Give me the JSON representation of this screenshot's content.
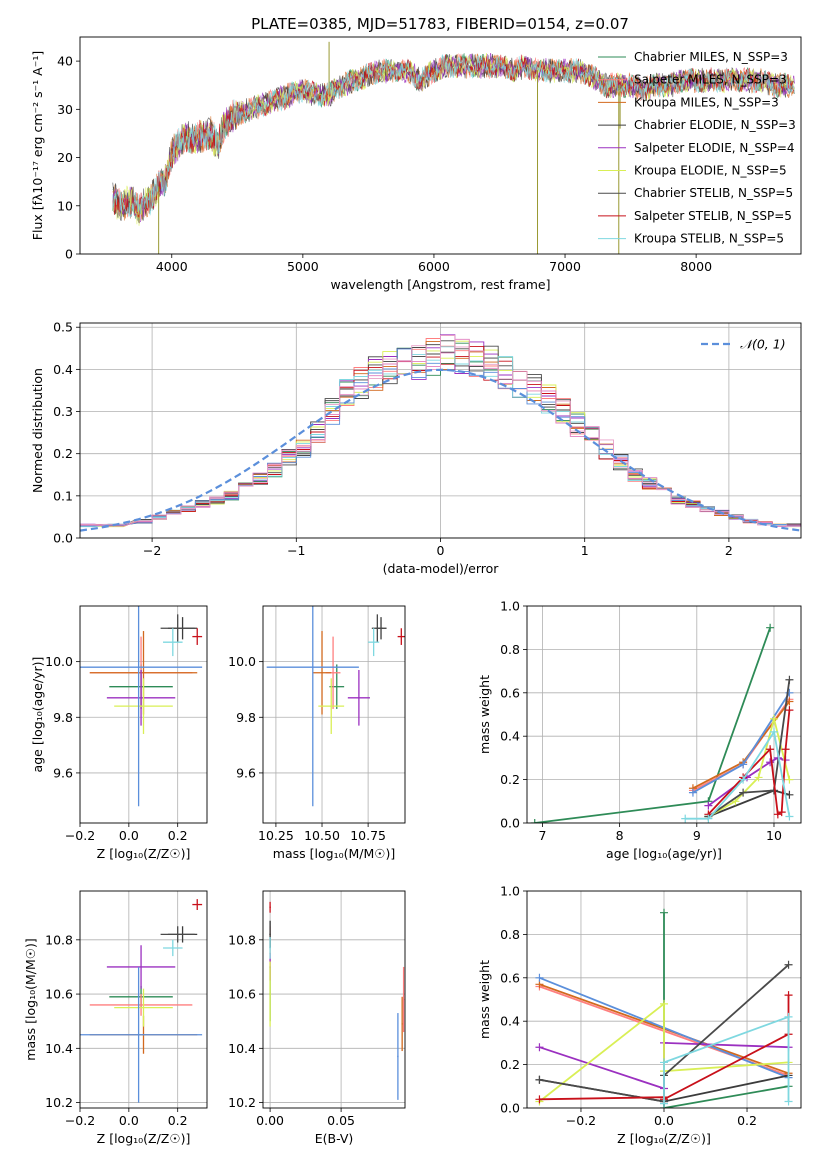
{
  "figure_title": "PLATE=0385, MJD=51783, FIBERID=0154, z=0.07",
  "colors": [
    "#2e8b57",
    "#ff7f7f",
    "#d2691e",
    "#3c3c3c",
    "#9b30c0",
    "#d9ef55",
    "#4a4a4a",
    "#c8101a",
    "#7fd8e0"
  ],
  "chart_data": [
    {
      "type": "line",
      "title": "PLATE=0385, MJD=51783, FIBERID=0154, z=0.07",
      "xlabel": "wavelength [Angstrom, rest frame]",
      "ylabel": "Flux [fλ10⁻¹⁷ erg cm⁻² s⁻¹ A⁻¹]",
      "xlim": [
        3300,
        8800
      ],
      "ylim": [
        0,
        45
      ],
      "xticks": [
        4000,
        5000,
        6000,
        7000,
        8000
      ],
      "yticks": [
        0,
        10,
        20,
        30,
        40
      ],
      "grid": false,
      "legend_position": "top-right",
      "series": [
        {
          "name": "Chabrier MILES, N_SSP=3"
        },
        {
          "name": "Salpeter MILES, N_SSP=3"
        },
        {
          "name": "Kroupa MILES, N_SSP=3"
        },
        {
          "name": "Chabrier ELODIE, N_SSP=3"
        },
        {
          "name": "Salpeter ELODIE, N_SSP=4"
        },
        {
          "name": "Kroupa ELODIE, N_SSP=5"
        },
        {
          "name": "Chabrier STELIB, N_SSP=5"
        },
        {
          "name": "Salpeter STELIB, N_SSP=5"
        },
        {
          "name": "Kroupa STELIB, N_SSP=5"
        }
      ],
      "continuum": {
        "x": [
          3550,
          3600,
          3700,
          3750,
          3850,
          3900,
          3950,
          4000,
          4100,
          4200,
          4300,
          4350,
          4400,
          4500,
          4600,
          4700,
          4800,
          4900,
          5000,
          5100,
          5200,
          5300,
          5400,
          5500,
          5600,
          5700,
          5800,
          5900,
          6000,
          6100,
          6200,
          6300,
          6400,
          6500,
          6600,
          6700,
          6800,
          6900,
          7000,
          7100,
          7200,
          7300,
          7400,
          7500,
          7600,
          7700,
          7800,
          7900,
          8000,
          8100,
          8200,
          8300,
          8400,
          8500,
          8600,
          8750
        ],
        "y": [
          12,
          10,
          11,
          9,
          12,
          14,
          15,
          21,
          24,
          24,
          25,
          22,
          27,
          29,
          30,
          31,
          32,
          33,
          34,
          33,
          33,
          35,
          36,
          37,
          38,
          38,
          38,
          36,
          38,
          39,
          39,
          39,
          39,
          39,
          38,
          39,
          38,
          38,
          38,
          38,
          37,
          35,
          35,
          35,
          34,
          35,
          35,
          36,
          36,
          36,
          36,
          36,
          36,
          36,
          35,
          35
        ]
      },
      "spikes": [
        {
          "x": 5200,
          "y": 44
        },
        {
          "x": 3900,
          "y": 0
        },
        {
          "x": 6790,
          "y": 0
        },
        {
          "x": 7410,
          "y": 0
        },
        {
          "x": 7420,
          "y": 26
        }
      ]
    },
    {
      "type": "bar",
      "title": "",
      "xlabel": "(data-model)/error",
      "ylabel": "Normed distribution",
      "xlim": [
        -2.5,
        2.5
      ],
      "ylim": [
        0,
        0.51
      ],
      "xticks": [
        -2,
        -1,
        0,
        1,
        2
      ],
      "yticks": [
        0.0,
        0.1,
        0.2,
        0.3,
        0.4,
        0.5
      ],
      "grid": true,
      "legend_position": "top-right",
      "bin_width": 0.1,
      "reference_curve": {
        "name": "𝒩(0, 1)",
        "style": "dashed",
        "color": "#5b8fdb"
      },
      "histogram_envelope": {
        "x": [
          -2.5,
          -2.3,
          -2.1,
          -2.0,
          -1.9,
          -1.8,
          -1.7,
          -1.6,
          -1.5,
          -1.4,
          -1.3,
          -1.2,
          -1.1,
          -1.0,
          -0.9,
          -0.8,
          -0.7,
          -0.6,
          -0.5,
          -0.4,
          -0.3,
          -0.2,
          -0.1,
          0.0,
          0.1,
          0.2,
          0.3,
          0.4,
          0.5,
          0.6,
          0.7,
          0.8,
          0.9,
          1.0,
          1.1,
          1.2,
          1.3,
          1.4,
          1.5,
          1.6,
          1.7,
          1.8,
          1.9,
          2.0,
          2.1,
          2.2,
          2.3,
          2.4
        ],
        "y": [
          0.03,
          0.03,
          0.04,
          0.05,
          0.06,
          0.07,
          0.08,
          0.09,
          0.1,
          0.12,
          0.14,
          0.16,
          0.19,
          0.21,
          0.25,
          0.3,
          0.34,
          0.37,
          0.39,
          0.4,
          0.41,
          0.42,
          0.43,
          0.44,
          0.43,
          0.42,
          0.41,
          0.39,
          0.37,
          0.35,
          0.33,
          0.3,
          0.27,
          0.24,
          0.21,
          0.18,
          0.15,
          0.13,
          0.11,
          0.09,
          0.08,
          0.07,
          0.06,
          0.05,
          0.04,
          0.035,
          0.03,
          0.03
        ]
      }
    },
    {
      "type": "scatter",
      "title": "",
      "xlabel": "Z [log₁₀(Z/Z☉)]",
      "ylabel": "age  [log₁₀(age/yr)]",
      "xlim": [
        -0.2,
        0.32
      ],
      "ylim": [
        9.42,
        10.2
      ],
      "xticks": [
        -0.2,
        0.0,
        0.2
      ],
      "yticks": [
        9.6,
        9.8,
        10.0
      ],
      "grid": true,
      "points": [
        {
          "series": 0,
          "x": 0.05,
          "y": 9.91,
          "xerr": 0.13,
          "yerr": 0.08
        },
        {
          "series": 1,
          "x": 0.05,
          "y": 9.96,
          "xerr": 0.21,
          "yerr": 0.13
        },
        {
          "series": 2,
          "x": 0.06,
          "y": 9.96,
          "xerr": 0.22,
          "yerr": 0.15
        },
        {
          "series": 3,
          "x": 0.22,
          "y": 10.12,
          "xerr": 0.06,
          "yerr": 0.04
        },
        {
          "series": 4,
          "x": 0.05,
          "y": 9.87,
          "xerr": 0.14,
          "yerr": 0.1
        },
        {
          "series": 5,
          "x": 0.06,
          "y": 9.84,
          "xerr": 0.12,
          "yerr": 0.1
        },
        {
          "series": 6,
          "x": 0.2,
          "y": 10.12,
          "xerr": 0.07,
          "yerr": 0.05
        },
        {
          "series": 7,
          "x": 0.28,
          "y": 10.09,
          "xerr": 0.02,
          "yerr": 0.03
        },
        {
          "series": 8,
          "x": 0.18,
          "y": 10.07,
          "xerr": 0.04,
          "yerr": 0.05
        },
        {
          "series": 9,
          "x": 0.04,
          "y": 9.98,
          "xerr": 0.26,
          "yerr": 0.5
        }
      ]
    },
    {
      "type": "scatter",
      "title": "",
      "xlabel": "mass [log₁₀(M/M☉)]",
      "ylabel": "",
      "xlim": [
        10.18,
        10.95
      ],
      "ylim": [
        9.42,
        10.2
      ],
      "xticks": [
        10.25,
        10.5,
        10.75
      ],
      "yticks": [
        9.6,
        9.8,
        10.0
      ],
      "grid": true,
      "points": [
        {
          "series": 0,
          "x": 10.58,
          "y": 9.91,
          "xerr": 0.04,
          "yerr": 0.08
        },
        {
          "series": 1,
          "x": 10.56,
          "y": 9.96,
          "xerr": 0.04,
          "yerr": 0.13
        },
        {
          "series": 2,
          "x": 10.5,
          "y": 9.96,
          "xerr": 0.05,
          "yerr": 0.15
        },
        {
          "series": 3,
          "x": 10.82,
          "y": 10.12,
          "xerr": 0.03,
          "yerr": 0.04
        },
        {
          "series": 4,
          "x": 10.7,
          "y": 9.87,
          "xerr": 0.06,
          "yerr": 0.1
        },
        {
          "series": 5,
          "x": 10.55,
          "y": 9.84,
          "xerr": 0.07,
          "yerr": 0.1
        },
        {
          "series": 6,
          "x": 10.8,
          "y": 10.12,
          "xerr": 0.03,
          "yerr": 0.05
        },
        {
          "series": 7,
          "x": 10.93,
          "y": 10.09,
          "xerr": 0.02,
          "yerr": 0.03
        },
        {
          "series": 8,
          "x": 10.78,
          "y": 10.07,
          "xerr": 0.03,
          "yerr": 0.05
        },
        {
          "series": 9,
          "x": 10.45,
          "y": 9.98,
          "xerr": 0.25,
          "yerr": 0.5
        }
      ]
    },
    {
      "type": "line",
      "title": "",
      "xlabel": "age  [log₁₀(age/yr)]",
      "ylabel": "mass weight",
      "xlim": [
        6.8,
        10.35
      ],
      "ylim": [
        0,
        1
      ],
      "xticks": [
        7,
        8,
        9,
        10
      ],
      "yticks": [
        0.0,
        0.2,
        0.4,
        0.6,
        0.8,
        1.0
      ],
      "grid": true,
      "series": [
        {
          "color_index": 0,
          "x": [
            6.9,
            9.15,
            9.95
          ],
          "y": [
            0.0,
            0.1,
            0.9
          ]
        },
        {
          "color_index": 1,
          "x": [
            8.95,
            9.6,
            10.2
          ],
          "y": [
            0.15,
            0.27,
            0.57
          ]
        },
        {
          "color_index": 2,
          "x": [
            8.95,
            9.6,
            10.2
          ],
          "y": [
            0.16,
            0.28,
            0.56
          ]
        },
        {
          "color_index": 9,
          "x": [
            8.95,
            9.6,
            10.2
          ],
          "y": [
            0.14,
            0.27,
            0.6
          ]
        },
        {
          "color_index": 3,
          "x": [
            9.15,
            10.0,
            10.2
          ],
          "y": [
            0.03,
            0.15,
            0.13
          ]
        },
        {
          "color_index": 4,
          "x": [
            9.15,
            9.65,
            9.95,
            10.05,
            10.15
          ],
          "y": [
            0.08,
            0.21,
            0.28,
            0.3,
            0.29
          ]
        },
        {
          "color_index": 5,
          "x": [
            9.15,
            9.5,
            9.8,
            10.0,
            10.2
          ],
          "y": [
            0.03,
            0.1,
            0.21,
            0.48,
            0.2
          ]
        },
        {
          "color_index": 6,
          "x": [
            9.15,
            9.6,
            10.0,
            10.2
          ],
          "y": [
            0.03,
            0.14,
            0.15,
            0.66
          ]
        },
        {
          "color_index": 7,
          "x": [
            9.15,
            9.6,
            9.95,
            10.05,
            10.1,
            10.15,
            10.2
          ],
          "y": [
            0.04,
            0.21,
            0.34,
            0.04,
            0.05,
            0.34,
            0.52
          ]
        },
        {
          "color_index": 8,
          "x": [
            8.85,
            9.15,
            9.6,
            10.0,
            10.2
          ],
          "y": [
            0.02,
            0.02,
            0.2,
            0.42,
            0.03
          ]
        }
      ]
    },
    {
      "type": "scatter",
      "title": "",
      "xlabel": "Z [log₁₀(Z/Z☉)]",
      "ylabel": "mass [log₁₀(M/M☉)]",
      "xlim": [
        -0.2,
        0.32
      ],
      "ylim": [
        10.18,
        10.98
      ],
      "xticks": [
        -0.2,
        0.0,
        0.2
      ],
      "yticks": [
        10.2,
        10.4,
        10.6,
        10.8
      ],
      "grid": true,
      "points": [
        {
          "series": 0,
          "x": 0.05,
          "y": 10.59,
          "xerr": 0.13,
          "yerr": 0.04
        },
        {
          "series": 1,
          "x": 0.05,
          "y": 10.56,
          "xerr": 0.21,
          "yerr": 0.04
        },
        {
          "series": 2,
          "x": 0.06,
          "y": 10.45,
          "xerr": 0.22,
          "yerr": 0.07
        },
        {
          "series": 3,
          "x": 0.22,
          "y": 10.82,
          "xerr": 0.06,
          "yerr": 0.03
        },
        {
          "series": 4,
          "x": 0.05,
          "y": 10.7,
          "xerr": 0.14,
          "yerr": 0.08
        },
        {
          "series": 5,
          "x": 0.06,
          "y": 10.55,
          "xerr": 0.12,
          "yerr": 0.07
        },
        {
          "series": 6,
          "x": 0.2,
          "y": 10.82,
          "xerr": 0.07,
          "yerr": 0.03
        },
        {
          "series": 7,
          "x": 0.28,
          "y": 10.93,
          "xerr": 0.02,
          "yerr": 0.02
        },
        {
          "series": 8,
          "x": 0.18,
          "y": 10.77,
          "xerr": 0.04,
          "yerr": 0.03
        },
        {
          "series": 9,
          "x": 0.04,
          "y": 10.45,
          "xerr": 0.26,
          "yerr": 0.25
        }
      ]
    },
    {
      "type": "scatter",
      "title": "",
      "xlabel": "E(B-V)",
      "ylabel": "",
      "xlim": [
        -0.005,
        0.095
      ],
      "ylim": [
        10.18,
        10.98
      ],
      "xticks": [
        0.0,
        0.05
      ],
      "yticks": [
        10.2,
        10.4,
        10.6,
        10.8
      ],
      "grid": true,
      "points": [
        {
          "series": 0,
          "x": 0.0,
          "y": 10.6,
          "xerr": 0.0005,
          "yerr": 0.1
        },
        {
          "series": 1,
          "x": 0.0,
          "y": 10.75,
          "xerr": 0.0005,
          "yerr": 0.1
        },
        {
          "series": 2,
          "x": 0.093,
          "y": 10.49,
          "xerr": 0.0005,
          "yerr": 0.1
        },
        {
          "series": 3,
          "x": 0.0,
          "y": 10.82,
          "xerr": 0.0005,
          "yerr": 0.05
        },
        {
          "series": 4,
          "x": 0.0,
          "y": 10.7,
          "xerr": 0.0005,
          "yerr": 0.05
        },
        {
          "series": 5,
          "x": 0.0,
          "y": 10.6,
          "xerr": 0.0005,
          "yerr": 0.12
        },
        {
          "series": 6,
          "x": 0.0,
          "y": 10.82,
          "xerr": 0.0005,
          "yerr": 0.05
        },
        {
          "series": 7,
          "x": 0.0,
          "y": 10.92,
          "xerr": 0.0005,
          "yerr": 0.02
        },
        {
          "series": 8,
          "x": 0.0,
          "y": 10.77,
          "xerr": 0.0005,
          "yerr": 0.04
        },
        {
          "series": 9,
          "x": 0.09,
          "y": 10.37,
          "xerr": 0.0005,
          "yerr": 0.16
        },
        {
          "series": 1,
          "x": 0.094,
          "y": 10.58,
          "xerr": 0.0005,
          "yerr": 0.12
        }
      ]
    },
    {
      "type": "line",
      "title": "",
      "xlabel": "Z [log₁₀(Z/Z☉)]",
      "ylabel": "mass weight",
      "xlim": [
        -0.33,
        0.33
      ],
      "ylim": [
        0,
        1
      ],
      "xticks": [
        -0.2,
        0.0,
        0.2
      ],
      "yticks": [
        0.0,
        0.2,
        0.4,
        0.6,
        0.8,
        1.0
      ],
      "grid": true,
      "series": [
        {
          "color_index": 0,
          "x": [
            0.0,
            0.0,
            0.0,
            0.3
          ],
          "y": [
            0.9,
            0.15,
            0.0,
            0.1
          ]
        },
        {
          "color_index": 1,
          "x": [
            -0.3,
            0.3
          ],
          "y": [
            0.56,
            0.15
          ]
        },
        {
          "color_index": 2,
          "x": [
            -0.3,
            0.3
          ],
          "y": [
            0.57,
            0.16
          ]
        },
        {
          "color_index": 9,
          "x": [
            -0.3,
            0.3
          ],
          "y": [
            0.6,
            0.14
          ]
        },
        {
          "color_index": 3,
          "x": [
            -0.3,
            0.0,
            0.3
          ],
          "y": [
            0.13,
            0.03,
            0.15
          ]
        },
        {
          "color_index": 4,
          "x": [
            -0.3,
            0.0,
            0.0,
            0.3
          ],
          "y": [
            0.28,
            0.09,
            0.3,
            0.28
          ]
        },
        {
          "color_index": 5,
          "x": [
            -0.3,
            0.0,
            0.0,
            0.3
          ],
          "y": [
            0.03,
            0.48,
            0.17,
            0.21
          ]
        },
        {
          "color_index": 6,
          "x": [
            -0.3,
            0.0,
            0.0,
            0.3
          ],
          "y": [
            0.13,
            0.03,
            0.15,
            0.66
          ]
        },
        {
          "color_index": 7,
          "x": [
            -0.3,
            0.0,
            0.0,
            0.3,
            0.3
          ],
          "y": [
            0.04,
            0.05,
            0.04,
            0.34,
            0.52
          ]
        },
        {
          "color_index": 8,
          "x": [
            0.0,
            0.0,
            0.3,
            0.3
          ],
          "y": [
            0.02,
            0.21,
            0.42,
            0.03
          ]
        }
      ]
    }
  ]
}
